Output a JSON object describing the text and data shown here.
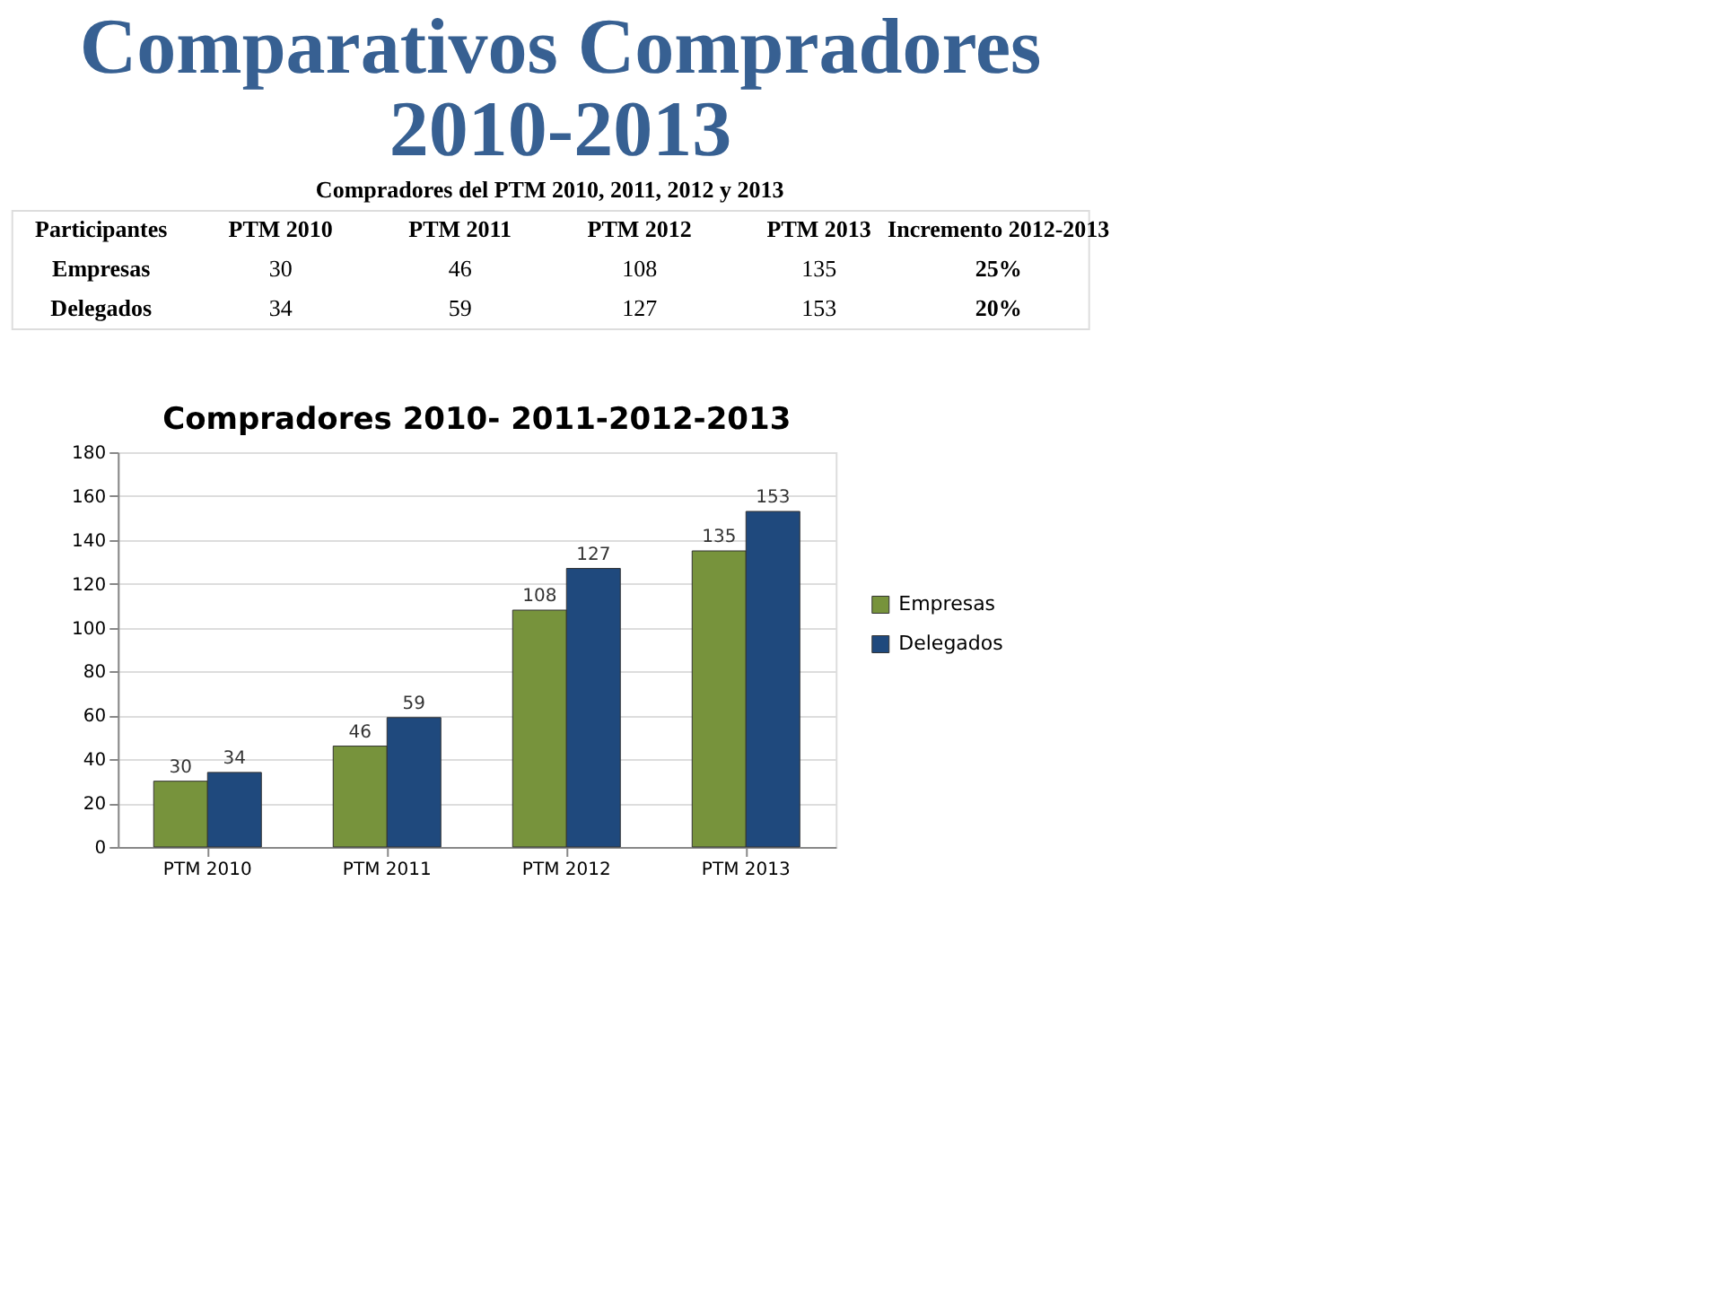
{
  "chart_data": {
    "type": "bar",
    "title": "Comparativos Compradores 2010-2013",
    "subtitle": "Compradores 2010- 2011-2012-2013",
    "categories": [
      "PTM 2010",
      "PTM 2011",
      "PTM 2012",
      "PTM 2013"
    ],
    "series": [
      {
        "name": "Empresas",
        "color": "#77933c",
        "values": [
          30,
          46,
          108,
          135
        ]
      },
      {
        "name": "Delegados",
        "color": "#1f497d",
        "values": [
          34,
          59,
          127,
          153
        ]
      }
    ],
    "ylim": [
      0,
      180
    ],
    "yticks": [
      0,
      20,
      40,
      60,
      80,
      100,
      120,
      140,
      160,
      180
    ],
    "grid": "y",
    "legend": "right",
    "data_labels": true,
    "annotations": [
      "Compradores del PTM 2010, 2011, 2012 y 2013",
      "Participantes",
      "PTM 2010",
      "PTM 2011",
      "PTM 2012",
      "PTM 2013",
      "Incremento 2012-2013",
      "Empresas",
      "30",
      "46",
      "108",
      "135",
      "25%",
      "Delegados",
      "34",
      "59",
      "127",
      "153",
      "20%"
    ]
  }
}
